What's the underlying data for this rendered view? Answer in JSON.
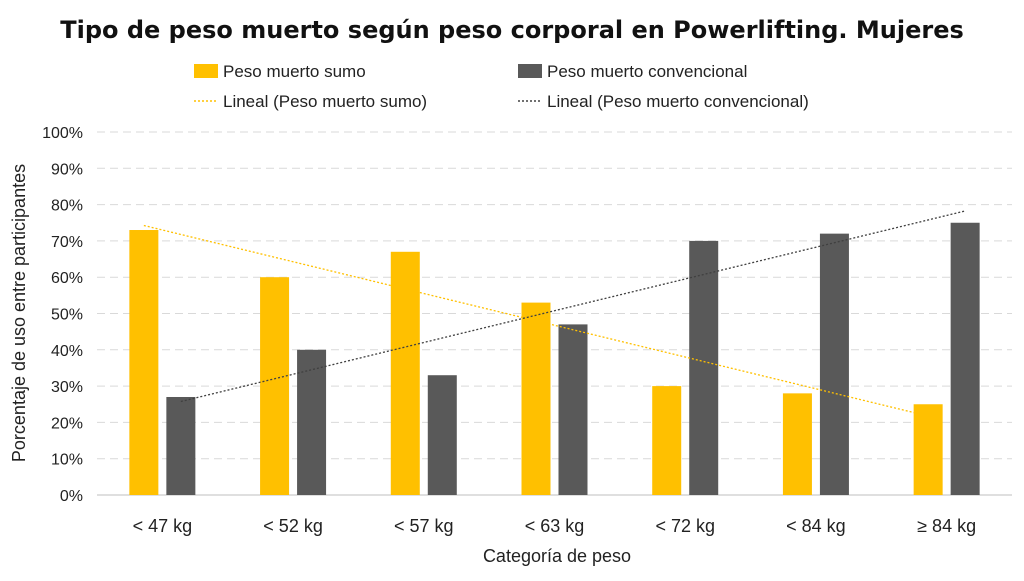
{
  "chart_data": {
    "type": "bar",
    "title": "Tipo de peso muerto según peso corporal en Powerlifting. Mujeres",
    "xlabel": "Categoría de peso",
    "ylabel": "Porcentaje de uso entre participantes",
    "categories": [
      "< 47 kg",
      "< 52 kg",
      "< 57 kg",
      "< 63 kg",
      "< 72 kg",
      "< 84 kg",
      "≥ 84 kg"
    ],
    "series": [
      {
        "name": "Peso muerto sumo",
        "values": [
          73,
          60,
          67,
          53,
          30,
          28,
          25
        ],
        "color": "#FFC000"
      },
      {
        "name": "Peso muerto convencional",
        "values": [
          27,
          40,
          33,
          47,
          70,
          72,
          75
        ],
        "color": "#595959"
      }
    ],
    "trendlines": [
      {
        "name": "Lineal (Peso muerto sumo)",
        "series": 0,
        "type": "linear",
        "color": "#FFC000"
      },
      {
        "name": "Lineal (Peso muerto convencional)",
        "series": 1,
        "type": "linear",
        "color": "#404040"
      }
    ],
    "ylim": [
      0,
      100
    ],
    "yticks": [
      "0%",
      "10%",
      "20%",
      "30%",
      "40%",
      "50%",
      "60%",
      "70%",
      "80%",
      "90%",
      "100%"
    ],
    "grid": true,
    "legend_position": "top"
  }
}
